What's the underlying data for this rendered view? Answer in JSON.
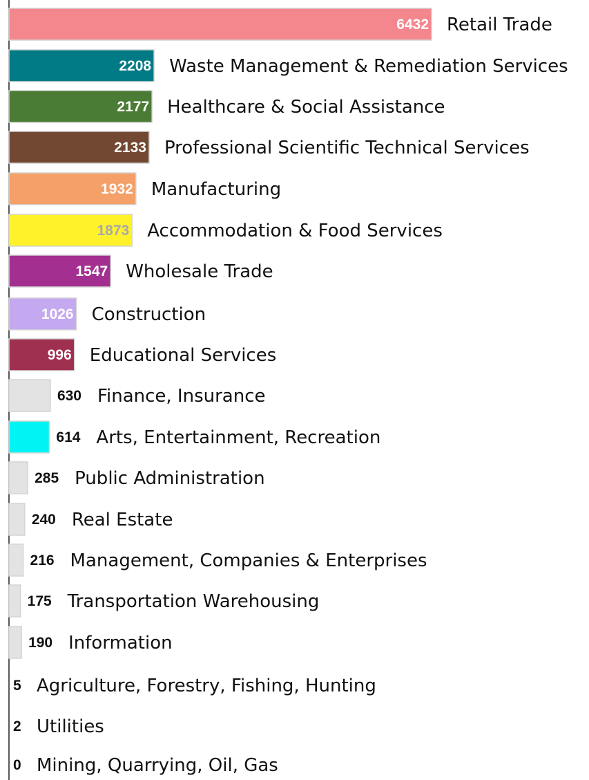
{
  "chart_data": {
    "type": "bar",
    "orientation": "horizontal",
    "title": "",
    "xlabel": "",
    "ylabel": "",
    "xlim": [
      0,
      6432
    ],
    "grid": false,
    "legend": "none",
    "categories": [
      "Retail Trade",
      "Waste Management & Remediation Services",
      "Healthcare & Social Assistance",
      "Professional Scientific Technical Services",
      "Manufacturing",
      "Accommodation & Food Services",
      "Wholesale Trade",
      "Construction",
      "Educational Services",
      "Finance, Insurance",
      "Arts, Entertainment, Recreation",
      "Public Administration",
      "Real Estate",
      "Management, Companies & Enterprises",
      "Transportation Warehousing",
      "Information",
      "Agriculture, Forestry, Fishing, Hunting",
      "Utilities",
      "Mining, Quarrying, Oil, Gas"
    ],
    "values": [
      6432,
      2208,
      2177,
      2133,
      1932,
      1873,
      1547,
      1026,
      996,
      630,
      614,
      285,
      240,
      216,
      175,
      190,
      5,
      2,
      0
    ],
    "value_labels": [
      "6432",
      "2208",
      "2177",
      "2133",
      "1932",
      "1873",
      "1547",
      "1026",
      "996",
      "630",
      "614",
      "285",
      "240",
      "216",
      "175",
      "190",
      "5",
      "2",
      "0"
    ],
    "colors": [
      "#f4878e",
      "#007a85",
      "#4a7c35",
      "#734832",
      "#f4a068",
      "#fff22a",
      "#a33090",
      "#c4a8f0",
      "#a03050",
      "#e3e3e3",
      "#00f4f4",
      "#e3e3e3",
      "#e3e3e3",
      "#e3e3e3",
      "#e3e3e3",
      "#e3e3e3",
      "#e3e3e3",
      "#e3e3e3",
      "#e3e3e3"
    ],
    "value_label_colors": [
      "#ffffff",
      "#ffffff",
      "#ffffff",
      "#ffffff",
      "#ffffff",
      "#a8a8a8",
      "#ffffff",
      "#ffffff",
      "#ffffff",
      "#111111",
      "#111111",
      "#111111",
      "#111111",
      "#111111",
      "#111111",
      "#111111",
      "#111111",
      "#111111",
      "#111111"
    ]
  }
}
